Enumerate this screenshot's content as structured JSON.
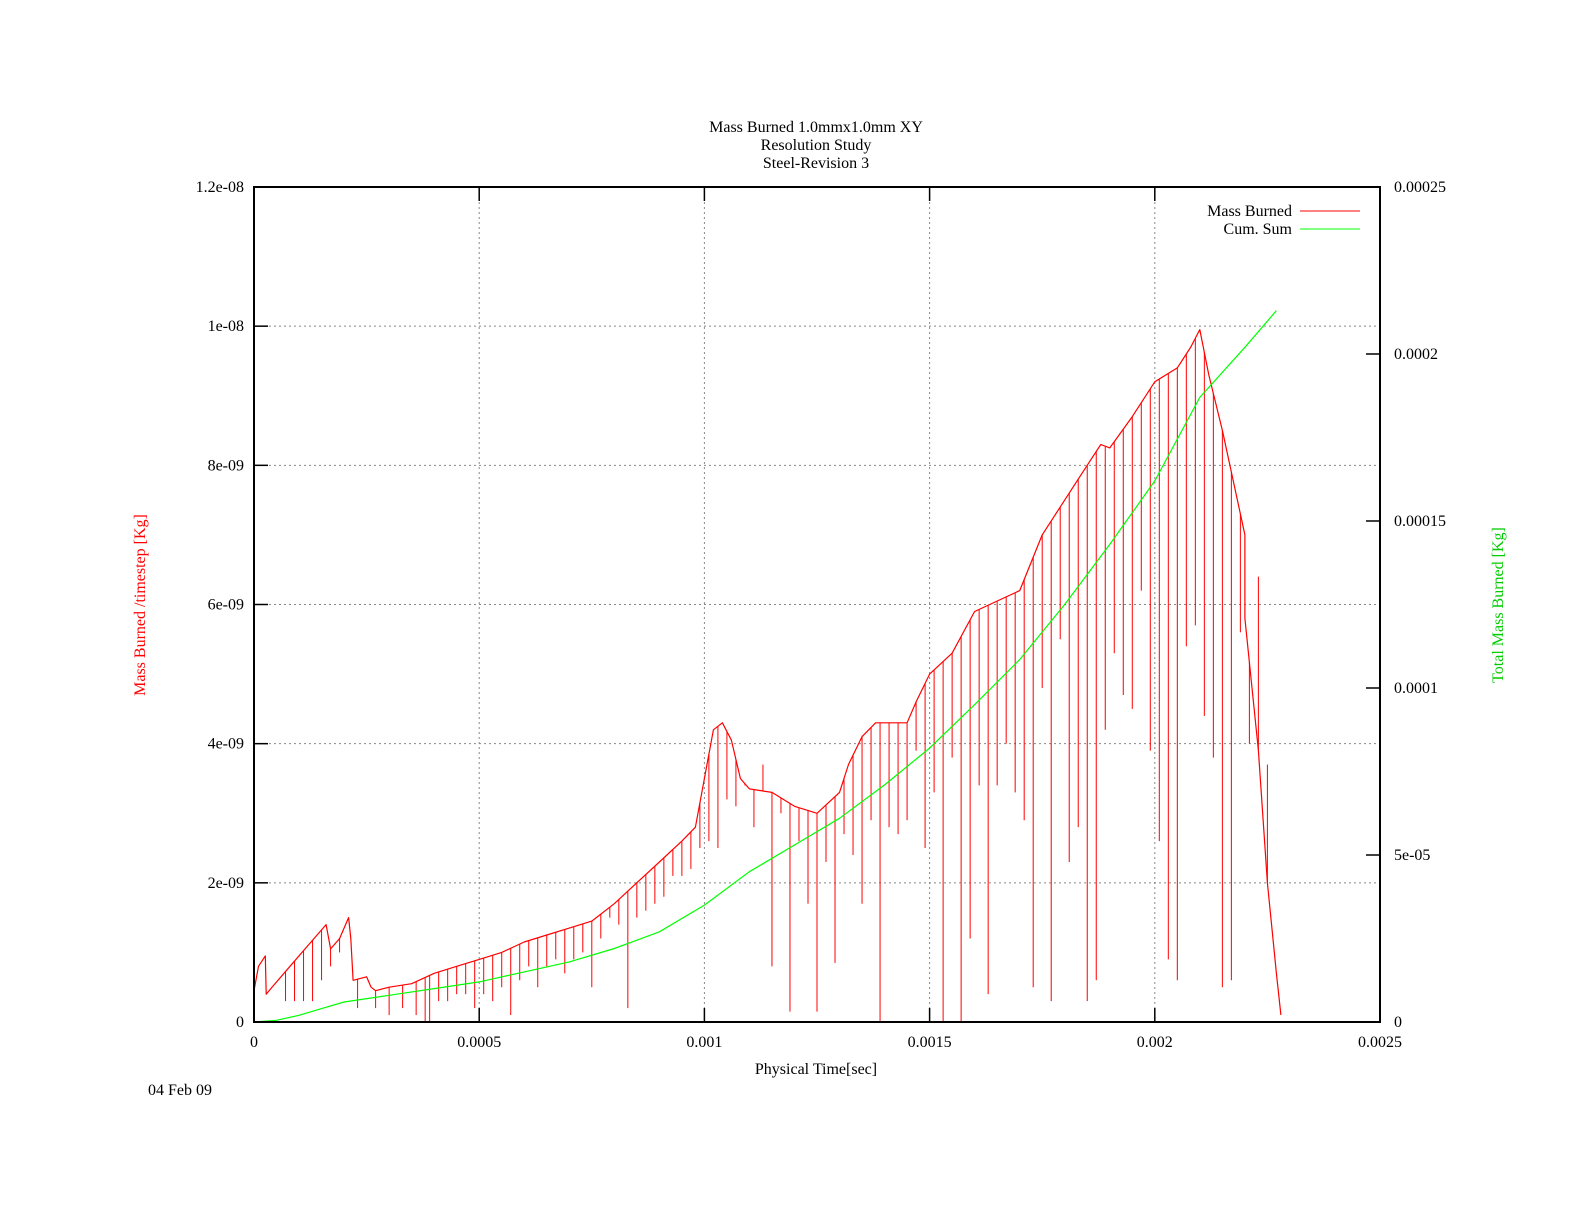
{
  "chart_data": {
    "type": "line",
    "title_lines": [
      "Mass Burned 1.0mmx1.0mm XY",
      "Resolution Study",
      "Steel-Revision 3"
    ],
    "xlabel": "Physical Time[sec]",
    "ylabel_left": "Mass Burned /timestep  [Kg]",
    "ylabel_right": "Total Mass Burned [Kg]",
    "xlim": [
      0,
      0.0025
    ],
    "ylim_left": [
      0,
      1.2e-08
    ],
    "ylim_right": [
      0,
      0.00025
    ],
    "x_ticks": [
      {
        "v": 0,
        "label": "0"
      },
      {
        "v": 0.0005,
        "label": "0.0005"
      },
      {
        "v": 0.001,
        "label": "0.001"
      },
      {
        "v": 0.0015,
        "label": "0.0015"
      },
      {
        "v": 0.002,
        "label": "0.002"
      },
      {
        "v": 0.0025,
        "label": "0.0025"
      }
    ],
    "y_left_ticks": [
      {
        "v": 0,
        "label": "0"
      },
      {
        "v": 2e-09,
        "label": "2e-09"
      },
      {
        "v": 4e-09,
        "label": "4e-09"
      },
      {
        "v": 6e-09,
        "label": "6e-09"
      },
      {
        "v": 8e-09,
        "label": "8e-09"
      },
      {
        "v": 1e-08,
        "label": "1e-08"
      },
      {
        "v": 1.2e-08,
        "label": "1.2e-08"
      }
    ],
    "y_right_ticks": [
      {
        "v": 0,
        "label": "0"
      },
      {
        "v": 5e-05,
        "label": "5e-05"
      },
      {
        "v": 0.0001,
        "label": "0.0001"
      },
      {
        "v": 0.00015,
        "label": "0.00015"
      },
      {
        "v": 0.0002,
        "label": "0.0002"
      },
      {
        "v": 0.00025,
        "label": "0.00025"
      }
    ],
    "grid": true,
    "legend_position": "top-right",
    "series": [
      {
        "name": "Mass Burned",
        "axis": "left",
        "color": "#ff0000",
        "x": [
          0,
          1e-05,
          2.5e-05,
          2.7e-05,
          4e-05,
          8e-05,
          0.00012,
          0.00016,
          0.00017,
          0.00019,
          0.00021,
          0.000215,
          0.00022,
          0.00025,
          0.00026,
          0.00027,
          0.0003,
          0.00035,
          0.0004,
          0.00045,
          0.0005,
          0.00055,
          0.0006,
          0.00065,
          0.0007,
          0.00075,
          0.0008,
          0.00085,
          0.0009,
          0.00095,
          0.00098,
          0.001,
          0.00102,
          0.00104,
          0.00106,
          0.00108,
          0.0011,
          0.00115,
          0.0012,
          0.00125,
          0.0013,
          0.00132,
          0.00135,
          0.00138,
          0.0014,
          0.00145,
          0.00147,
          0.0015,
          0.00155,
          0.0016,
          0.0017,
          0.00175,
          0.0018,
          0.00185,
          0.00188,
          0.0019,
          0.00195,
          0.002,
          0.00205,
          0.00208,
          0.0021,
          0.00212,
          0.00215,
          0.0022,
          0.0022,
          0.00223,
          0.00225,
          0.00227,
          0.00228
        ],
        "y": [
          4.5e-10,
          8e-10,
          9.5e-10,
          4e-10,
          5e-10,
          8e-10,
          1.1e-09,
          1.4e-09,
          1.05e-09,
          1.2e-09,
          1.5e-09,
          1.2e-09,
          6e-10,
          6.5e-10,
          5e-10,
          4.5e-10,
          5e-10,
          5.5e-10,
          7e-10,
          8e-10,
          9e-10,
          1e-09,
          1.15e-09,
          1.25e-09,
          1.35e-09,
          1.45e-09,
          1.7e-09,
          2e-09,
          2.3e-09,
          2.6e-09,
          2.8e-09,
          3.5e-09,
          4.2e-09,
          4.3e-09,
          4.05e-09,
          3.5e-09,
          3.35e-09,
          3.3e-09,
          3.1e-09,
          3e-09,
          3.3e-09,
          3.7e-09,
          4.1e-09,
          4.3e-09,
          4.3e-09,
          4.3e-09,
          4.6e-09,
          5e-09,
          5.3e-09,
          5.9e-09,
          6.2e-09,
          7e-09,
          7.5e-09,
          8e-09,
          8.3e-09,
          8.25e-09,
          8.7e-09,
          9.2e-09,
          9.4e-09,
          9.7e-09,
          9.95e-09,
          9.3e-09,
          8.5e-09,
          7e-09,
          5.8e-09,
          3.9e-09,
          2e-09,
          7e-10,
          1e-10
        ]
      },
      {
        "name": "Cum. Sum",
        "axis": "right",
        "color": "#00ff00",
        "x": [
          0,
          5e-05,
          0.0001,
          0.00015,
          0.0002,
          0.0003,
          0.0004,
          0.0005,
          0.0006,
          0.0007,
          0.0008,
          0.0009,
          0.001,
          0.0011,
          0.0012,
          0.0013,
          0.0014,
          0.0015,
          0.0016,
          0.0017,
          0.0018,
          0.0019,
          0.002,
          0.0021,
          0.0022,
          0.00227
        ],
        "y": [
          0,
          5e-07,
          2e-06,
          4e-06,
          6e-06,
          8e-06,
          1e-05,
          1.2e-05,
          1.5e-05,
          1.8e-05,
          2.2e-05,
          2.7e-05,
          3.5e-05,
          4.5e-05,
          5.3e-05,
          6.1e-05,
          7.1e-05,
          8.2e-05,
          9.5e-05,
          0.0001085,
          0.000125,
          0.000143,
          0.000162,
          0.000187,
          0.000202,
          0.000213
        ]
      }
    ],
    "drop_spikes": {
      "series": "Mass Burned",
      "x": [
        7e-05,
        9e-05,
        0.00011,
        0.00013,
        0.00015,
        0.00017,
        0.00019,
        0.00023,
        0.00027,
        0.0003,
        0.00033,
        0.00036,
        0.00038,
        0.00039,
        0.00041,
        0.00043,
        0.00045,
        0.00047,
        0.00049,
        0.00051,
        0.00053,
        0.00055,
        0.00057,
        0.00059,
        0.00061,
        0.00063,
        0.00065,
        0.00067,
        0.00069,
        0.00071,
        0.00073,
        0.00075,
        0.00077,
        0.00079,
        0.00081,
        0.00083,
        0.00085,
        0.00087,
        0.00089,
        0.00091,
        0.00093,
        0.00095,
        0.00097,
        0.00099,
        0.00101,
        0.00103,
        0.00105,
        0.00107,
        0.00109,
        0.00111,
        0.00113,
        0.00115,
        0.00117,
        0.00119,
        0.00121,
        0.00123,
        0.00125,
        0.00127,
        0.00129,
        0.00131,
        0.00133,
        0.00135,
        0.00137,
        0.00139,
        0.00141,
        0.00143,
        0.00145,
        0.00147,
        0.00149,
        0.00151,
        0.00153,
        0.00155,
        0.00157,
        0.00159,
        0.00161,
        0.00163,
        0.00165,
        0.00167,
        0.00169,
        0.00171,
        0.00173,
        0.00175,
        0.00177,
        0.00179,
        0.00181,
        0.00183,
        0.00185,
        0.00187,
        0.00189,
        0.00191,
        0.00193,
        0.00195,
        0.00197,
        0.00199,
        0.00201,
        0.00203,
        0.00205,
        0.00207,
        0.00209,
        0.00211,
        0.00213,
        0.00215,
        0.00217,
        0.00219,
        0.00221,
        0.00223,
        0.00225
      ],
      "y": [
        3e-10,
        3e-10,
        3e-10,
        3e-10,
        6e-10,
        8e-10,
        1e-09,
        2e-10,
        2e-10,
        1e-10,
        2e-10,
        1e-10,
        0,
        0,
        3e-10,
        3e-10,
        4e-10,
        4e-10,
        2e-10,
        4e-10,
        3e-10,
        5e-10,
        1e-10,
        6e-10,
        8e-10,
        5e-10,
        8e-10,
        9e-10,
        7e-10,
        9e-10,
        1e-09,
        5e-10,
        1.2e-09,
        1.5e-09,
        1.4e-09,
        2e-10,
        1.5e-09,
        1.6e-09,
        1.7e-09,
        1.8e-09,
        2.1e-09,
        2.1e-09,
        2.2e-09,
        2.5e-09,
        2.6e-09,
        2.5e-09,
        3.2e-09,
        3.1e-09,
        3.4e-09,
        2.8e-09,
        3.7e-09,
        8e-10,
        3e-09,
        1.5e-10,
        2.6e-09,
        1.7e-09,
        1.5e-10,
        2.3e-09,
        8.5e-10,
        2.7e-09,
        2.4e-09,
        1.7e-09,
        2.9e-09,
        0,
        2.8e-09,
        2.7e-09,
        2.9e-09,
        3.9e-09,
        2.5e-09,
        3.3e-09,
        0,
        3.8e-09,
        0,
        1.2e-09,
        3.4e-09,
        4e-10,
        3.4e-09,
        4e-09,
        3.3e-09,
        2.9e-09,
        5e-10,
        4.8e-09,
        3e-10,
        5.5e-09,
        2.3e-09,
        2.8e-09,
        3e-10,
        6e-10,
        4.2e-09,
        5.3e-09,
        4.7e-09,
        4.5e-09,
        6.2e-09,
        3.9e-09,
        2.6e-09,
        9e-10,
        6e-10,
        5.4e-09,
        5.7e-09,
        4.4e-09,
        3.8e-09,
        5e-10,
        6e-10,
        5.6e-09,
        4e-09,
        6.4e-09,
        3.7e-09
      ]
    }
  },
  "footer": {
    "date": "04 Feb 09"
  }
}
